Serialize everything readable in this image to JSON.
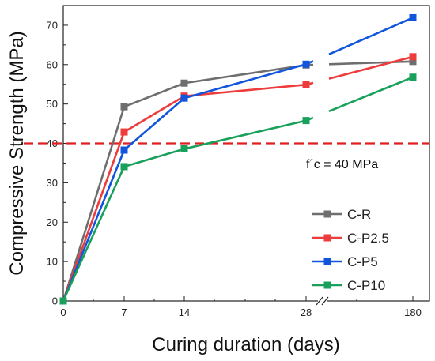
{
  "chart_data": {
    "type": "line",
    "xlabel": "Curing duration (days)",
    "ylabel": "Compressive Strength (MPa)",
    "ylim": [
      0,
      75
    ],
    "x_ticks": [
      "0",
      "7",
      "14",
      "28",
      "180"
    ],
    "y_ticks": [
      0,
      10,
      20,
      30,
      40,
      50,
      60,
      70
    ],
    "axis_break": "between 28 and 180",
    "x": [
      0,
      7,
      14,
      28,
      180
    ],
    "series": [
      {
        "name": "C-R",
        "values": [
          0,
          49.3,
          55.3,
          59.9,
          60.8
        ],
        "color": "#6e6e6e"
      },
      {
        "name": "C-P2.5",
        "values": [
          0,
          42.9,
          52.0,
          54.9,
          62.0
        ],
        "color": "#ee3b3b"
      },
      {
        "name": "C-P5",
        "values": [
          0,
          38.3,
          51.5,
          60.1,
          71.9
        ],
        "color": "#1155dd"
      },
      {
        "name": "C-P10",
        "values": [
          0,
          34.1,
          38.6,
          45.8,
          56.8
        ],
        "color": "#19a05a"
      }
    ],
    "reference_line": {
      "value": 40,
      "label": "f´c = 40 MPa",
      "color": "#e02020",
      "style": "dashed"
    },
    "legend_placement": "bottom-right",
    "grid": false
  }
}
